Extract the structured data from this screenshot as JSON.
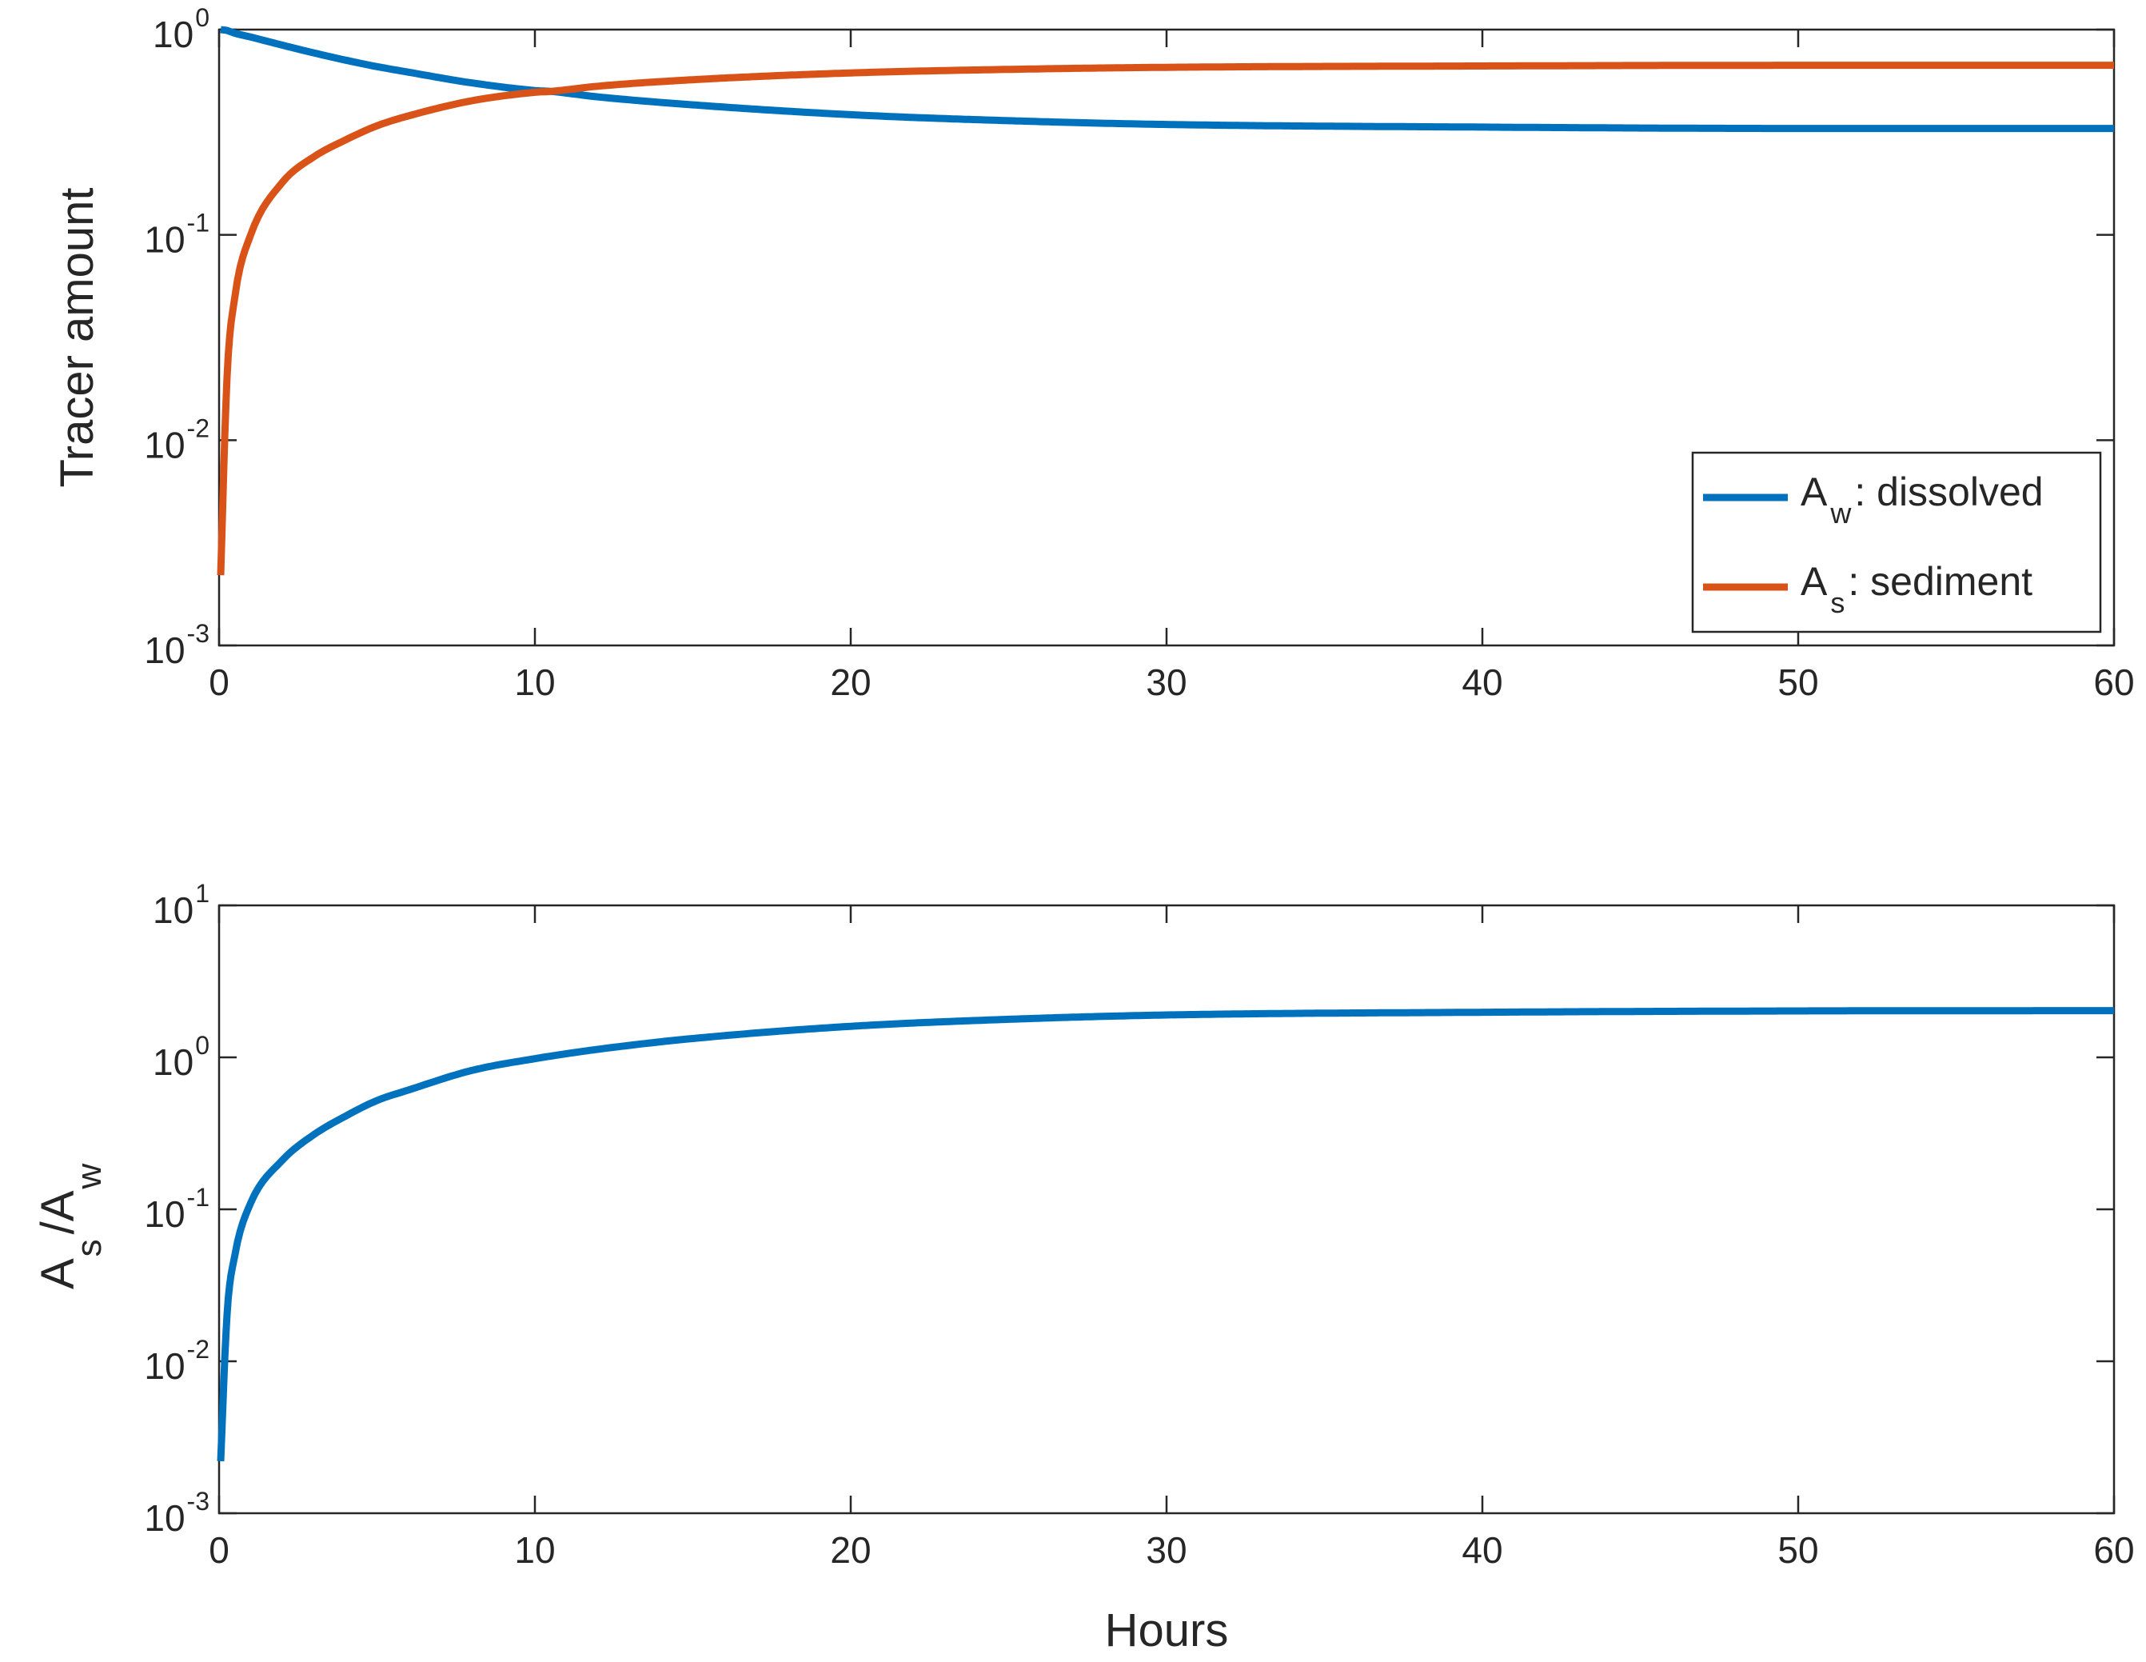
{
  "colors": {
    "dissolved": "#0072BD",
    "sediment": "#D95319",
    "ratio": "#0072BD",
    "axes": "#262626"
  },
  "chart_data": [
    {
      "type": "line",
      "ylabel": "Tracer amount",
      "xlabel": "",
      "xlim": [
        0,
        60
      ],
      "ylim": [
        0.001,
        1
      ],
      "yscale": "log",
      "xticks": [
        "0",
        "10",
        "20",
        "30",
        "40",
        "50",
        "60"
      ],
      "yticks": [
        {
          "base": "10",
          "exp": "0"
        },
        {
          "base": "10",
          "exp": "-1"
        },
        {
          "base": "10",
          "exp": "-2"
        },
        {
          "base": "10",
          "exp": "-3"
        }
      ],
      "grid": false,
      "legend_location": "bottom-right",
      "x": [
        0.05,
        0.25,
        0.5,
        1,
        2,
        3,
        4,
        5,
        6,
        8,
        10,
        10.5,
        12,
        15,
        20,
        25,
        30,
        40,
        50,
        60
      ],
      "series": [
        {
          "name": "dissolved",
          "legend_main": "A",
          "legend_sub": "w",
          "legend_suffix": ": dissolved",
          "color": "#0072BD",
          "values": [
            1.0,
            0.99,
            0.96,
            0.92,
            0.84,
            0.77,
            0.71,
            0.66,
            0.62,
            0.55,
            0.505,
            0.5,
            0.47,
            0.43,
            0.385,
            0.36,
            0.345,
            0.335,
            0.33,
            0.33
          ]
        },
        {
          "name": "sediment",
          "legend_main": "A",
          "legend_sub": "s",
          "legend_suffix": ": sediment",
          "color": "#D95319",
          "values": [
            0.0022,
            0.02,
            0.05,
            0.1,
            0.18,
            0.24,
            0.29,
            0.34,
            0.38,
            0.45,
            0.495,
            0.5,
            0.53,
            0.57,
            0.615,
            0.64,
            0.655,
            0.665,
            0.67,
            0.67
          ]
        }
      ]
    },
    {
      "type": "line",
      "ylabel_main": "A",
      "ylabel_sub1": "s",
      "ylabel_mid": "/A",
      "ylabel_sub2": "w",
      "xlabel": "Hours",
      "xlim": [
        0,
        60
      ],
      "ylim": [
        0.001,
        10
      ],
      "yscale": "log",
      "xticks": [
        "0",
        "10",
        "20",
        "30",
        "40",
        "50",
        "60"
      ],
      "yticks": [
        {
          "base": "10",
          "exp": "1"
        },
        {
          "base": "10",
          "exp": "0"
        },
        {
          "base": "10",
          "exp": "-1"
        },
        {
          "base": "10",
          "exp": "-2"
        },
        {
          "base": "10",
          "exp": "-3"
        }
      ],
      "grid": false,
      "x": [
        0.05,
        0.25,
        0.5,
        1,
        2,
        3,
        4,
        5,
        6,
        8,
        10,
        12,
        15,
        20,
        25,
        30,
        40,
        50,
        60
      ],
      "series": [
        {
          "color": "#0072BD",
          "values": [
            0.0022,
            0.02,
            0.05,
            0.11,
            0.21,
            0.31,
            0.41,
            0.52,
            0.61,
            0.82,
            0.98,
            1.13,
            1.33,
            1.6,
            1.78,
            1.9,
            1.98,
            2.02,
            2.03
          ]
        }
      ]
    }
  ]
}
